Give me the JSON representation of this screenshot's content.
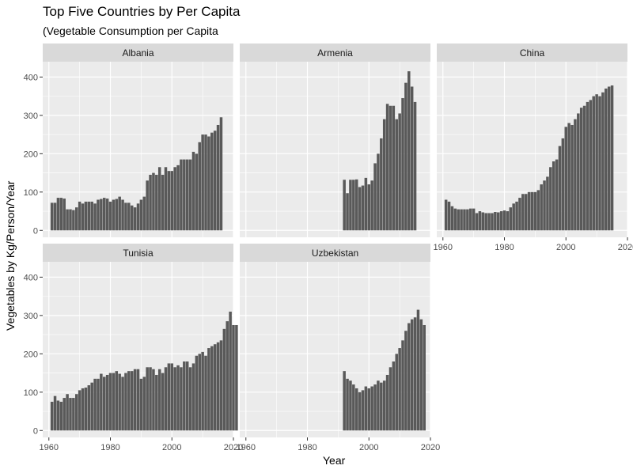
{
  "chart_data": {
    "type": "bar",
    "title": "Top Five Countries by Per Capita",
    "subtitle": "(Vegetable Consumption per Capita",
    "xlabel": "Year",
    "ylabel": "Vegetables by Kg/Person/Year",
    "xlim": [
      1958,
      2020
    ],
    "ylim": [
      -18,
      440
    ],
    "x_ticks": [
      1960,
      1980,
      2000,
      2020
    ],
    "y_ticks": [
      0,
      100,
      200,
      300,
      400
    ],
    "grid": true,
    "colors": {
      "bar": "#595959",
      "panel": "#ebebeb",
      "strip": "#d9d9d9",
      "grid": "#ffffff",
      "axis_text": "#4d4d4d"
    },
    "panels": [
      {
        "name": "Albania",
        "start_year": 1961,
        "values": [
          72,
          72,
          85,
          85,
          83,
          55,
          55,
          53,
          60,
          75,
          70,
          75,
          75,
          75,
          70,
          80,
          82,
          85,
          83,
          75,
          80,
          82,
          88,
          80,
          72,
          72,
          65,
          60,
          70,
          80,
          88,
          130,
          145,
          150,
          145,
          165,
          145,
          165,
          155,
          155,
          165,
          170,
          185,
          185,
          185,
          185,
          205,
          200,
          230,
          250,
          250,
          245,
          255,
          260,
          275,
          295
        ]
      },
      {
        "name": "Armenia",
        "start_year": 1992,
        "values": [
          132,
          97,
          132,
          132,
          133,
          113,
          117,
          137,
          120,
          130,
          175,
          200,
          240,
          290,
          330,
          325,
          325,
          290,
          305,
          345,
          385,
          415,
          375,
          335
        ]
      },
      {
        "name": "China",
        "start_year": 1961,
        "values": [
          80,
          75,
          63,
          57,
          55,
          55,
          55,
          55,
          57,
          57,
          45,
          50,
          47,
          45,
          45,
          45,
          48,
          47,
          50,
          52,
          50,
          60,
          70,
          75,
          85,
          95,
          95,
          100,
          100,
          100,
          105,
          120,
          130,
          140,
          165,
          180,
          185,
          220,
          240,
          270,
          280,
          275,
          290,
          305,
          320,
          325,
          335,
          340,
          350,
          355,
          350,
          360,
          370,
          375,
          378
        ]
      },
      {
        "name": "Tunisia",
        "start_year": 1961,
        "values": [
          75,
          90,
          78,
          75,
          85,
          95,
          85,
          85,
          95,
          105,
          110,
          112,
          118,
          125,
          135,
          135,
          148,
          140,
          145,
          150,
          150,
          155,
          148,
          140,
          150,
          155,
          155,
          160,
          160,
          135,
          140,
          165,
          165,
          160,
          145,
          160,
          150,
          165,
          175,
          175,
          165,
          170,
          165,
          180,
          180,
          165,
          175,
          195,
          200,
          205,
          195,
          215,
          220,
          225,
          230,
          235,
          265,
          285,
          310,
          275,
          275
        ]
      },
      {
        "name": "Uzbekistan",
        "start_year": 1992,
        "values": [
          155,
          135,
          130,
          120,
          110,
          100,
          105,
          115,
          110,
          115,
          120,
          130,
          125,
          130,
          145,
          165,
          180,
          200,
          215,
          235,
          260,
          280,
          290,
          295,
          315,
          290,
          275
        ]
      }
    ]
  }
}
